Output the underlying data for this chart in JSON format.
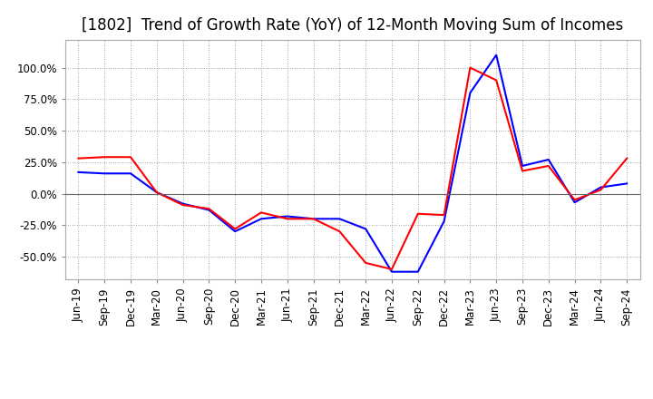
{
  "title": "[1802]  Trend of Growth Rate (YoY) of 12-Month Moving Sum of Incomes",
  "x_labels": [
    "Jun-19",
    "Sep-19",
    "Dec-19",
    "Mar-20",
    "Jun-20",
    "Sep-20",
    "Dec-20",
    "Mar-21",
    "Jun-21",
    "Sep-21",
    "Dec-21",
    "Mar-22",
    "Jun-22",
    "Sep-22",
    "Dec-22",
    "Mar-23",
    "Jun-23",
    "Sep-23",
    "Dec-23",
    "Mar-24",
    "Jun-24",
    "Sep-24"
  ],
  "ordinary_income": [
    0.17,
    0.16,
    0.16,
    0.01,
    -0.08,
    -0.13,
    -0.3,
    -0.2,
    -0.18,
    -0.2,
    -0.2,
    -0.28,
    -0.62,
    -0.62,
    -0.22,
    0.8,
    1.1,
    0.22,
    0.27,
    -0.07,
    0.05,
    0.08
  ],
  "net_income": [
    0.28,
    0.29,
    0.29,
    0.01,
    -0.09,
    -0.12,
    -0.28,
    -0.15,
    -0.2,
    -0.2,
    -0.3,
    -0.55,
    -0.6,
    -0.16,
    -0.17,
    1.0,
    0.9,
    0.18,
    0.22,
    -0.05,
    0.03,
    0.28
  ],
  "ordinary_color": "#0000FF",
  "net_color": "#FF0000",
  "yticks": [
    -0.5,
    -0.25,
    0.0,
    0.25,
    0.5,
    0.75,
    1.0
  ],
  "ytick_labels": [
    "-50.0%",
    "-25.0%",
    "0.0%",
    "25.0%",
    "50.0%",
    "75.0%",
    "100.0%"
  ],
  "ylim": [
    -0.68,
    1.22
  ],
  "background_color": "#FFFFFF",
  "grid_color": "#888888",
  "title_fontsize": 12,
  "tick_fontsize": 8.5,
  "legend_fontsize": 9.5
}
